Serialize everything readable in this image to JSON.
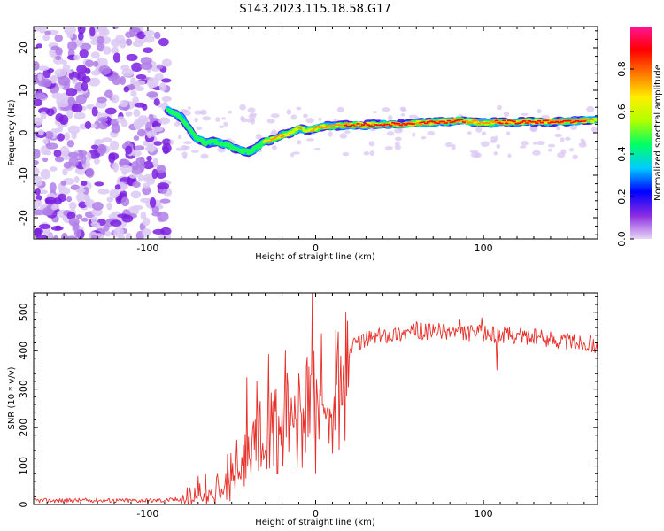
{
  "title": "S143.2023.115.18.58.G17",
  "chart_data": [
    {
      "type": "heatmap",
      "xlabel": "Height of straight line (km)",
      "ylabel": "Frequency (Hz)",
      "xlim": [
        -168,
        168
      ],
      "ylim": [
        -25,
        25
      ],
      "xticks": [
        -100,
        0,
        100
      ],
      "yticks": [
        -20,
        -10,
        0,
        10,
        20
      ],
      "colorbar": {
        "label": "Normalized spectral amplitude",
        "range": [
          0,
          1
        ],
        "ticks": [
          "0.0",
          "0.2",
          "0.4",
          "0.6",
          "0.8"
        ],
        "colormap": [
          "#e8d7f5",
          "#8a2be2",
          "#0000ff",
          "#00ccff",
          "#00ff66",
          "#b0ff00",
          "#ffee00",
          "#ff7700",
          "#ff0000",
          "#ff1493"
        ]
      },
      "noise_region_x": [
        -168,
        -88
      ],
      "ridge_trace": {
        "x": [
          -88,
          -80,
          -72,
          -65,
          -60,
          -52,
          -46,
          -40,
          -35,
          -30,
          -25,
          -20,
          -15,
          -10,
          -5,
          0,
          5,
          10,
          20,
          30,
          40,
          50,
          60,
          70,
          80,
          85,
          90,
          95,
          100,
          110,
          120,
          130,
          140,
          150,
          160,
          168
        ],
        "y": [
          5.5,
          3.5,
          -1,
          -2.5,
          -2,
          -3,
          -4,
          -4.5,
          -3.5,
          -2,
          -1.5,
          -0.5,
          0,
          1,
          0.5,
          1,
          1.5,
          1.5,
          1.8,
          1.8,
          2,
          2,
          2.2,
          2.5,
          2.6,
          3,
          2.7,
          2.5,
          2.3,
          2.5,
          2.5,
          2.6,
          2.6,
          2.7,
          2.9,
          3
        ],
        "amplitude": [
          0.45,
          0.5,
          0.5,
          0.55,
          0.55,
          0.45,
          0.45,
          0.4,
          0.45,
          0.7,
          0.75,
          0.7,
          0.6,
          0.7,
          0.6,
          0.8,
          0.7,
          0.75,
          0.85,
          0.9,
          0.95,
          0.9,
          0.8,
          0.95,
          0.9,
          0.95,
          0.75,
          0.7,
          0.7,
          0.9,
          0.95,
          0.95,
          0.95,
          0.9,
          0.85,
          0.6
        ]
      }
    },
    {
      "type": "line",
      "xlabel": "Height of straight line (km)",
      "ylabel": "SNR (10 * v/v)",
      "xlim": [
        -168,
        168
      ],
      "ylim": [
        0,
        550
      ],
      "xticks": [
        -100,
        0,
        100
      ],
      "yticks": [
        0,
        100,
        200,
        300,
        400,
        500
      ],
      "series": [
        {
          "color": "#e8302a",
          "x": [
            -168,
            -150,
            -130,
            -110,
            -95,
            -85,
            -80,
            -75,
            -70,
            -65,
            -60,
            -55,
            -50,
            -45,
            -40,
            -35,
            -30,
            -25,
            -20,
            -15,
            -10,
            -5,
            -2,
            0,
            5,
            10,
            15,
            20,
            25,
            30,
            40,
            50,
            60,
            70,
            80,
            90,
            100,
            110,
            120,
            130,
            140,
            150,
            160,
            168
          ],
          "y": [
            10,
            10,
            11,
            10,
            10,
            12,
            15,
            20,
            25,
            35,
            45,
            55,
            80,
            110,
            140,
            180,
            200,
            230,
            240,
            260,
            270,
            290,
            300,
            320,
            340,
            360,
            380,
            400,
            420,
            430,
            440,
            445,
            450,
            450,
            450,
            445,
            445,
            440,
            440,
            435,
            430,
            425,
            420,
            415
          ],
          "spikes": [
            {
              "x": -41,
              "y": 330
            },
            {
              "x": -35,
              "y": 320
            },
            {
              "x": -28,
              "y": 390
            },
            {
              "x": -18,
              "y": 400
            },
            {
              "x": -10,
              "y": 340
            },
            {
              "x": -2,
              "y": 550
            },
            {
              "x": 0,
              "y": 80
            },
            {
              "x": 108,
              "y": 350
            },
            {
              "x": 60,
              "y": 475
            },
            {
              "x": 86,
              "y": 480
            },
            {
              "x": 99,
              "y": 485
            }
          ]
        }
      ]
    }
  ]
}
